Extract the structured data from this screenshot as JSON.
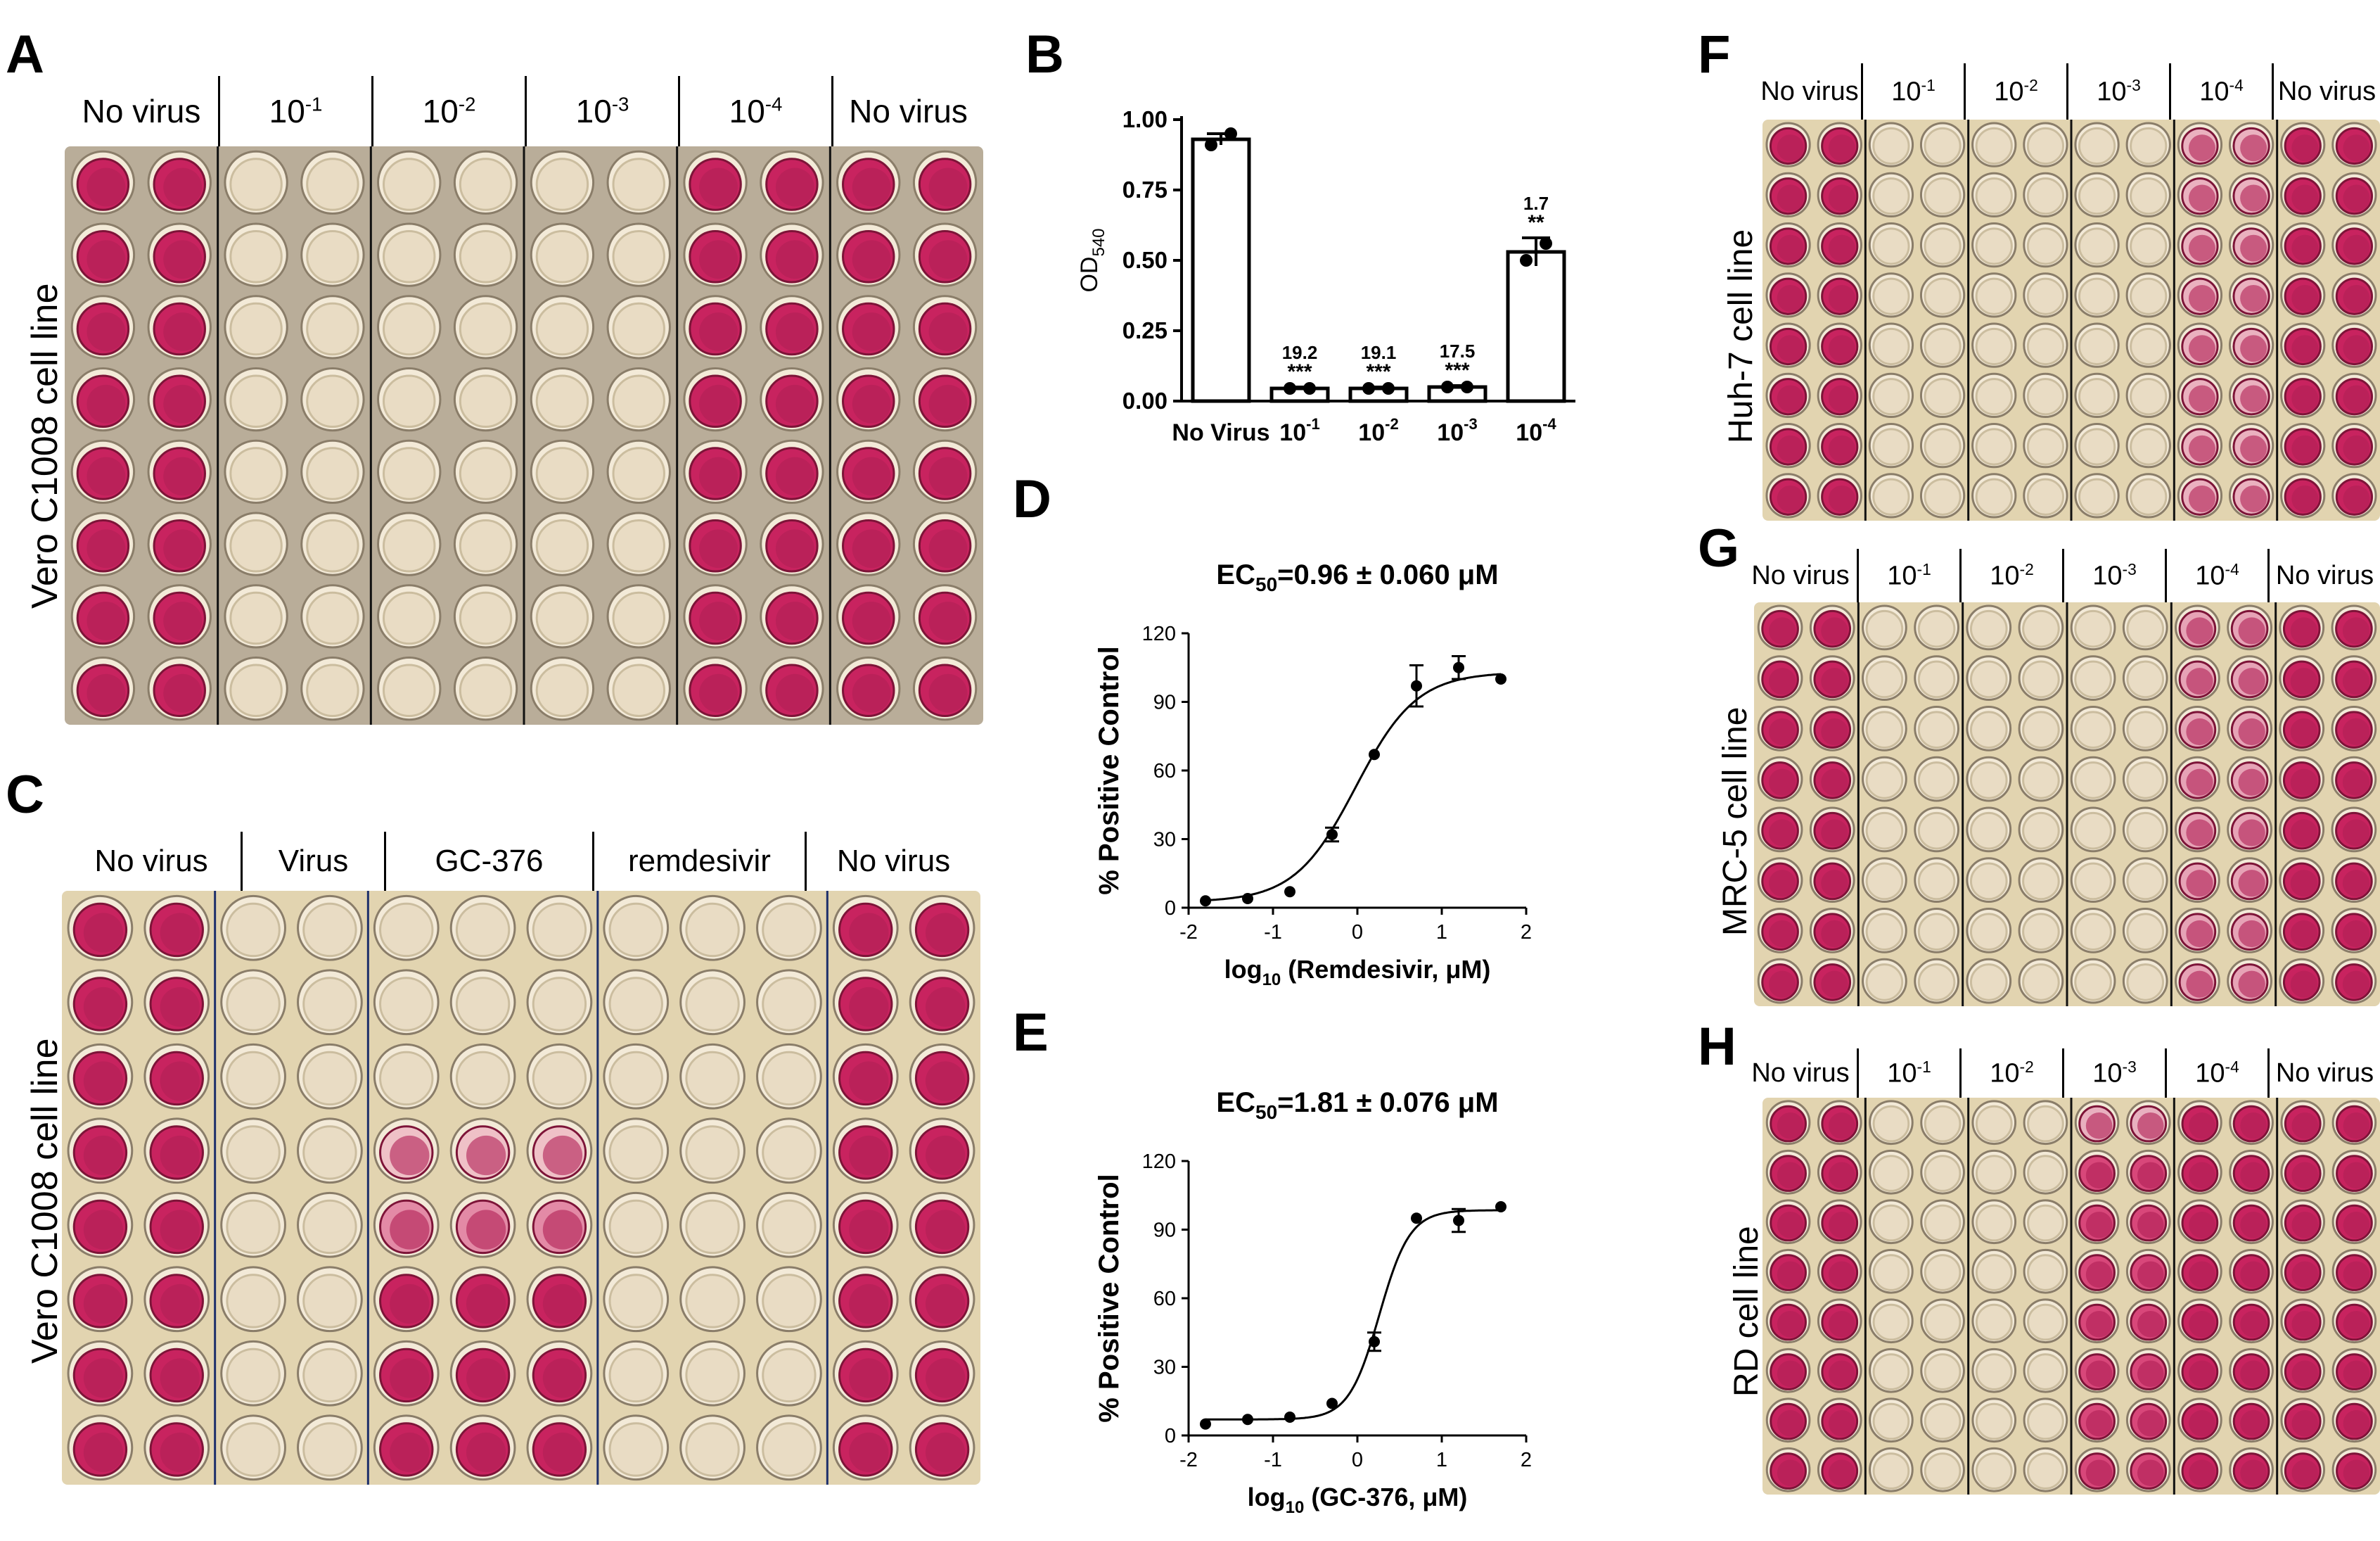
{
  "panels": {
    "A": {
      "letter": "A",
      "cell_line": "Vero C1008 cell line",
      "columns": [
        "No virus",
        "10",
        "10",
        "10",
        "10",
        "No virus"
      ],
      "exponents": [
        "",
        "-1",
        "-2",
        "-3",
        "-4",
        ""
      ],
      "pink_pairs": [
        true,
        false,
        false,
        false,
        true,
        true
      ]
    },
    "B": {
      "letter": "B",
      "ylabel": "OD",
      "ylabel_sub": "540"
    },
    "C": {
      "letter": "C",
      "cell_line": "Vero C1008 cell line",
      "columns": [
        "No virus",
        "Virus",
        "GC-376",
        "remdesivir",
        "No virus"
      ]
    },
    "D": {
      "letter": "D",
      "ec50_prefix": "EC",
      "ec50_sub": "50",
      "ec50_value": "=0.96 ± 0.060 μM",
      "ylabel": "% Positive Control",
      "xlabel_prefix": "log",
      "xlabel_sub": "10",
      "xlabel_rest": " (Remdesivir, μM)"
    },
    "E": {
      "letter": "E",
      "ec50_prefix": "EC",
      "ec50_sub": "50",
      "ec50_value": "=1.81 ± 0.076 μM",
      "ylabel": "% Positive Control",
      "xlabel_prefix": "log",
      "xlabel_sub": "10",
      "xlabel_rest": " (GC-376, μM)"
    },
    "F": {
      "letter": "F",
      "cell_line": "Huh-7 cell line",
      "columns": [
        "No virus",
        "10",
        "10",
        "10",
        "10",
        "No virus"
      ],
      "exponents": [
        "",
        "-1",
        "-2",
        "-3",
        "-4",
        ""
      ]
    },
    "G": {
      "letter": "G",
      "cell_line": "MRC-5 cell line",
      "columns": [
        "No virus",
        "10",
        "10",
        "10",
        "10",
        "No virus"
      ],
      "exponents": [
        "",
        "-1",
        "-2",
        "-3",
        "-4",
        ""
      ]
    },
    "H": {
      "letter": "H",
      "cell_line": "RD cell line",
      "columns": [
        "No virus",
        "10",
        "10",
        "10",
        "10",
        "No virus"
      ],
      "exponents": [
        "",
        "-1",
        "-2",
        "-3",
        "-4",
        ""
      ]
    }
  },
  "colors": {
    "pink_well": "#c8235f",
    "pale_well": "#e9dcc4",
    "plate_bg_A": "#b9ad99",
    "plate_bg_light": "#e2d4b0"
  },
  "chart_data": [
    {
      "id": "B",
      "type": "bar",
      "categories": [
        "No Virus",
        "10^-1",
        "10^-2",
        "10^-3",
        "10^-4"
      ],
      "category_labels": [
        "No Virus",
        "10",
        "10",
        "10",
        "10"
      ],
      "category_exponents": [
        "",
        "-1",
        "-2",
        "-3",
        "-4"
      ],
      "values": [
        0.93,
        0.045,
        0.045,
        0.05,
        0.53
      ],
      "errors": [
        0.02,
        0.005,
        0.005,
        0.005,
        0.05
      ],
      "points": [
        [
          0.91,
          0.95
        ],
        [
          0.045,
          0.045
        ],
        [
          0.045,
          0.045
        ],
        [
          0.05,
          0.05
        ],
        [
          0.5,
          0.56
        ]
      ],
      "annotations": [
        {
          "fold": "",
          "stars": ""
        },
        {
          "fold": "19.2",
          "stars": "***"
        },
        {
          "fold": "19.1",
          "stars": "***"
        },
        {
          "fold": "17.5",
          "stars": "***"
        },
        {
          "fold": "1.7",
          "stars": "**"
        }
      ],
      "ylim": [
        0,
        1.0
      ],
      "yticks": [
        0.0,
        0.25,
        0.5,
        0.75,
        1.0
      ],
      "ytick_labels": [
        "0.00",
        "0.25",
        "0.50",
        "0.75",
        "1.00"
      ]
    },
    {
      "id": "D",
      "type": "scatter",
      "x": [
        -1.8,
        -1.3,
        -0.8,
        -0.3,
        0.2,
        0.7,
        1.2,
        1.7
      ],
      "y": [
        3,
        4,
        7,
        32,
        67,
        97,
        105,
        100
      ],
      "yerr": [
        0,
        0,
        0,
        3,
        0,
        9,
        5,
        0
      ],
      "fit": {
        "bottom": 2.5,
        "top": 103,
        "logEC50": -0.02,
        "hill": 1.2
      },
      "xlim": [
        -2,
        2
      ],
      "ylim": [
        0,
        120
      ],
      "xticks": [
        -2,
        -1,
        0,
        1,
        2
      ],
      "yticks": [
        0,
        30,
        60,
        90,
        120
      ]
    },
    {
      "id": "E",
      "type": "scatter",
      "x": [
        -1.8,
        -1.3,
        -0.8,
        -0.3,
        0.2,
        0.7,
        1.2,
        1.7
      ],
      "y": [
        5,
        7,
        8,
        14,
        41,
        95,
        94,
        100
      ],
      "yerr": [
        0,
        0,
        0,
        0,
        4,
        0,
        5,
        0
      ],
      "fit": {
        "bottom": 7,
        "top": 98.5,
        "logEC50": 0.26,
        "hill": 2.4
      },
      "xlim": [
        -2,
        2
      ],
      "ylim": [
        0,
        120
      ],
      "xticks": [
        -2,
        -1,
        0,
        1,
        2
      ],
      "yticks": [
        0,
        30,
        60,
        90,
        120
      ]
    }
  ]
}
